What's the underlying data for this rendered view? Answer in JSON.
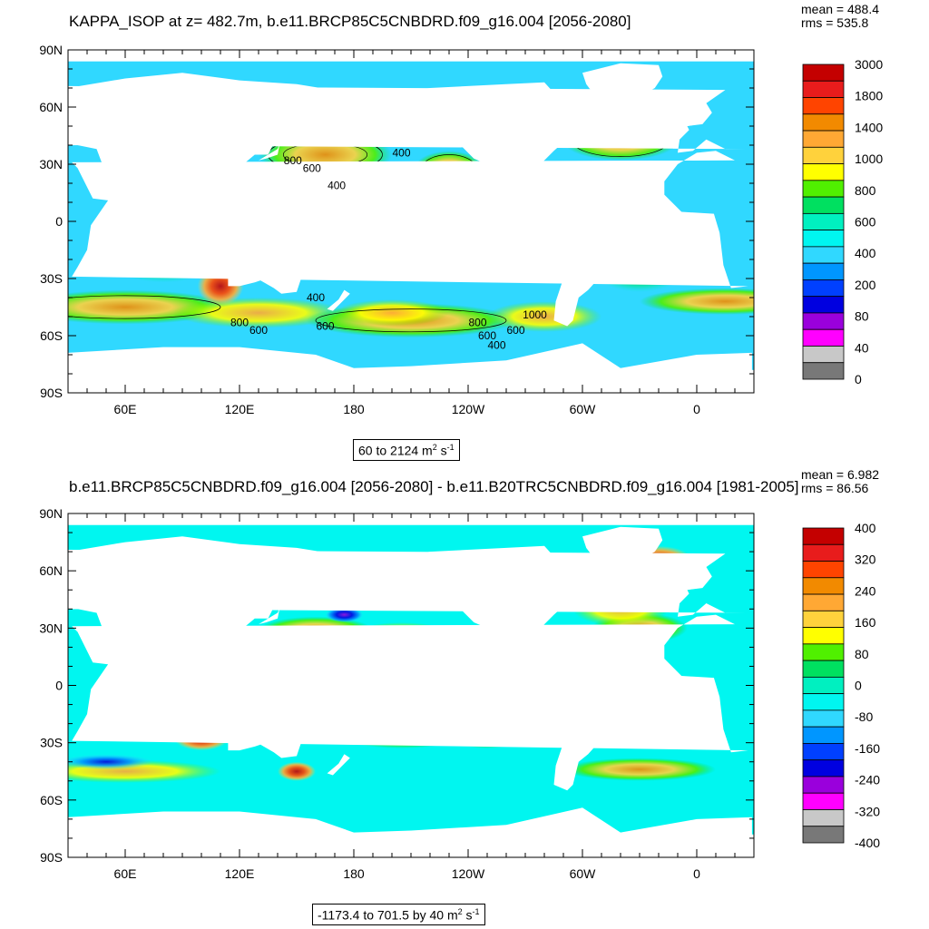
{
  "chart_data": [
    {
      "type": "heatmap",
      "title": "KAPPA_ISOP at z= 482.7m, b.e11.BRCP85C5CNBDRD.f09_g16.004 [2056-2080]",
      "stats": {
        "mean": "mean = 488.4",
        "rms": "rms = 535.8"
      },
      "range_label": {
        "text": "60 to 2124 m",
        "sup1": "2",
        "mid": " s",
        "sup2": "-1"
      },
      "y_ticks": [
        "90N",
        "60N",
        "30N",
        "0",
        "30S",
        "60S",
        "90S"
      ],
      "x_ticks": [
        "60E",
        "120E",
        "180",
        "120W",
        "60W",
        "0"
      ],
      "colorbar_labels": [
        "3000",
        "1800",
        "1400",
        "1000",
        "800",
        "600",
        "400",
        "200",
        "80",
        "40",
        "0"
      ],
      "colors": [
        "#c40000",
        "#e81c1c",
        "#ff4400",
        "#f28a00",
        "#ffa834",
        "#ffd23c",
        "#ffff00",
        "#50f000",
        "#00e060",
        "#00f0c0",
        "#00f6f0",
        "#30d8ff",
        "#0096ff",
        "#0040ff",
        "#0000e0",
        "#9a00dc",
        "#ff00ff",
        "#c8c8c8",
        "#787878"
      ],
      "contour_labels": [
        "400",
        "800",
        "600",
        "400",
        "800",
        "600",
        "400",
        "600",
        "600",
        "800",
        "1000",
        "600",
        "400"
      ]
    },
    {
      "type": "heatmap",
      "title": "b.e11.BRCP85C5CNBDRD.f09_g16.004 [2056-2080] - b.e11.B20TRC5CNBDRD.f09_g16.004 [1981-2005]",
      "stats": {
        "mean": "mean = 6.982",
        "rms": "rms = 86.56"
      },
      "range_label": {
        "text": "-1173.4 to 701.5 by 40 m",
        "sup1": "2",
        "mid": " s",
        "sup2": "-1"
      },
      "y_ticks": [
        "90N",
        "60N",
        "30N",
        "0",
        "30S",
        "60S",
        "90S"
      ],
      "x_ticks": [
        "60E",
        "120E",
        "180",
        "120W",
        "60W",
        "0"
      ],
      "colorbar_labels": [
        "400",
        "320",
        "240",
        "160",
        "80",
        "0",
        "-80",
        "-160",
        "-240",
        "-320",
        "-400"
      ],
      "colors": [
        "#c40000",
        "#e81c1c",
        "#ff4400",
        "#f28a00",
        "#ffa834",
        "#ffd23c",
        "#ffff00",
        "#50f000",
        "#00e060",
        "#00f0c0",
        "#00f6f0",
        "#30d8ff",
        "#0096ff",
        "#0040ff",
        "#0000e0",
        "#9a00dc",
        "#ff00ff",
        "#c8c8c8",
        "#787878"
      ]
    }
  ]
}
